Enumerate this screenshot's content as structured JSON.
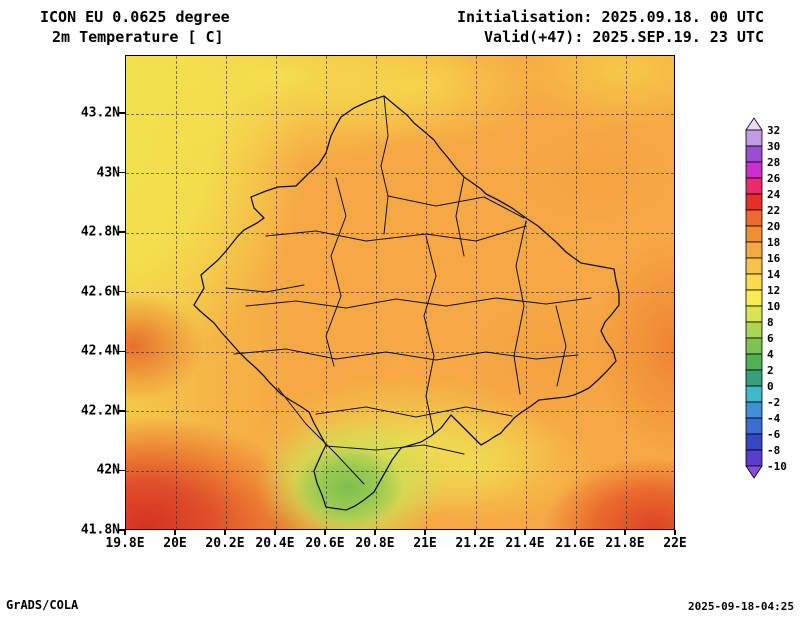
{
  "header": {
    "line1": "ICON EU 0.0625 degree",
    "line2": "2m Temperature [ C]",
    "init": "Initialisation: 2025.09.18. 00 UTC",
    "valid": "Valid(+47): 2025.SEP.19. 23 UTC"
  },
  "footer": {
    "left": "GrADS/COLA",
    "right": "2025-09-18-04:25"
  },
  "map": {
    "x_ticks": [
      "19.8E",
      "20E",
      "20.2E",
      "20.4E",
      "20.6E",
      "20.8E",
      "21E",
      "21.2E",
      "21.4E",
      "21.6E",
      "21.8E",
      "22E"
    ],
    "y_ticks": [
      "43.2N",
      "43N",
      "42.8N",
      "42.6N",
      "42.4N",
      "42.2N",
      "42N",
      "41.8N"
    ],
    "base_field_color": "#f6a844"
  },
  "colorbar": {
    "labels": [
      "32",
      "30",
      "28",
      "26",
      "24",
      "22",
      "20",
      "18",
      "16",
      "14",
      "12",
      "10",
      "8",
      "6",
      "4",
      "2",
      "0",
      "-2",
      "-4",
      "-6",
      "-8",
      "-10"
    ],
    "colors": [
      "#ead9f7",
      "#c39ae6",
      "#9a4fd0",
      "#cc2fcf",
      "#e62e6b",
      "#e33127",
      "#ee6a2e",
      "#f18f35",
      "#f5a944",
      "#f8c34c",
      "#f9da4f",
      "#f6ec55",
      "#d9e455",
      "#abd454",
      "#7cc353",
      "#4fb055",
      "#35a07b",
      "#3fb9c9",
      "#3f90d6",
      "#3a6ed0",
      "#3448c4",
      "#5a3ecb",
      "#8a4fd8"
    ]
  }
}
